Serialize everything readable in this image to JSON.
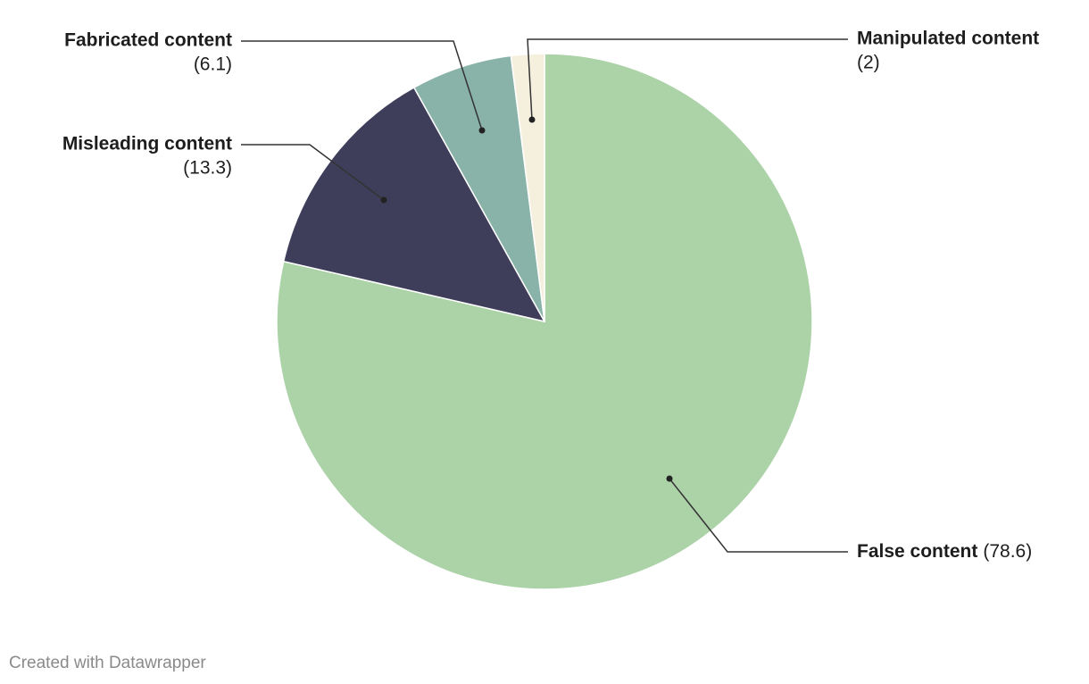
{
  "chart_data": {
    "type": "pie",
    "categories": [
      "False content",
      "Misleading content",
      "Fabricated content",
      "Manipulated content"
    ],
    "values": [
      78.6,
      13.3,
      6.1,
      2
    ],
    "value_labels": [
      "(78.6)",
      "(13.3)",
      "(6.1)",
      "(2)"
    ],
    "colors": [
      "#acd2a8",
      "#3e3e5b",
      "#89b3a8",
      "#f5f0de"
    ],
    "footer": "Created with Datawrapper"
  }
}
